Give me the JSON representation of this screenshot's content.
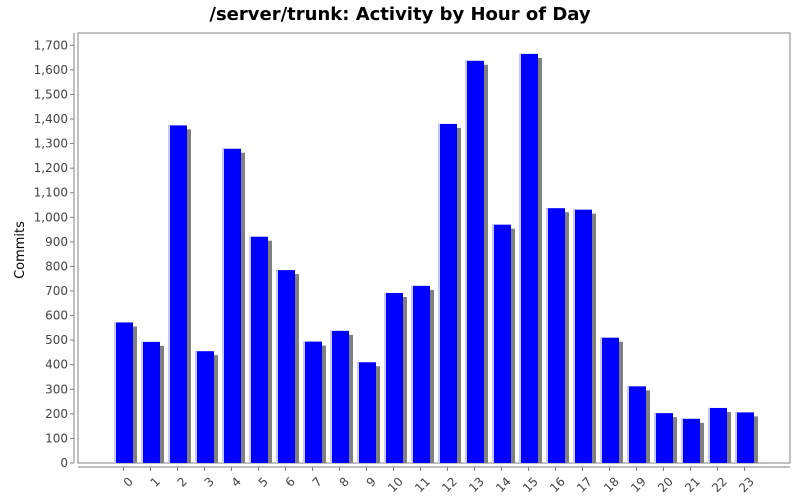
{
  "chart_data": {
    "type": "bar",
    "title": "/server/trunk: Activity by Hour of Day",
    "xlabel": "",
    "ylabel": "Commits",
    "categories": [
      "0",
      "1",
      "2",
      "3",
      "4",
      "5",
      "6",
      "7",
      "8",
      "9",
      "10",
      "11",
      "12",
      "13",
      "14",
      "15",
      "16",
      "17",
      "18",
      "19",
      "20",
      "21",
      "22",
      "23"
    ],
    "values": [
      572,
      493,
      1374,
      455,
      1279,
      921,
      785,
      494,
      538,
      410,
      692,
      721,
      1380,
      1637,
      970,
      1665,
      1037,
      1031,
      510,
      312,
      203,
      180,
      224,
      206
    ],
    "ylim": [
      0,
      1750
    ],
    "yticks": [
      0,
      100,
      200,
      300,
      400,
      500,
      600,
      700,
      800,
      900,
      1000,
      1100,
      1200,
      1300,
      1400,
      1500,
      1600,
      1700
    ],
    "ytick_labels": [
      "0",
      "100",
      "200",
      "300",
      "400",
      "500",
      "600",
      "700",
      "800",
      "900",
      "1,000",
      "1,100",
      "1,200",
      "1,300",
      "1,400",
      "1,500",
      "1,600",
      "1,700"
    ],
    "grid": false,
    "legend": "none",
    "colors": {
      "bar": "#0000ff",
      "bar_shadow": "#808080",
      "bar_highlight": "#c8c8ff",
      "axis": "#808080",
      "text": "#000000",
      "tick_text": "#444444"
    }
  }
}
